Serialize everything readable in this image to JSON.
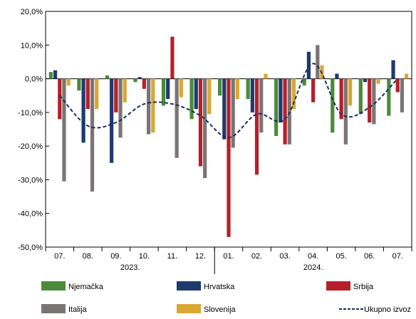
{
  "chart_data": {
    "type": "bar",
    "title": "",
    "xlabel": "",
    "ylabel": "",
    "ylim": [
      -50,
      20
    ],
    "yticks": [
      20,
      10,
      0,
      -10,
      -20,
      -30,
      -40,
      -50
    ],
    "ytick_labels": [
      "20,0%",
      "10,0%",
      "0,0%",
      "-10,0%",
      "-20,0%",
      "-30,0%",
      "-40,0%",
      "-50,0%"
    ],
    "grid": false,
    "legend_position": "bottom",
    "categories": [
      "07.",
      "08.",
      "09.",
      "10.",
      "11.",
      "12.",
      "01.",
      "02.",
      "03.",
      "04.",
      "05.",
      "06.",
      "07."
    ],
    "year_groups": [
      {
        "label": "2023.",
        "start_index": 0,
        "end_index": 5
      },
      {
        "label": "2024.",
        "start_index": 6,
        "end_index": 12
      }
    ],
    "series": [
      {
        "name": "Njemačka",
        "kind": "bar",
        "color": "#4a8a3a",
        "values": [
          2,
          -3.5,
          1,
          -1,
          -8,
          -12,
          -5,
          -6,
          -17,
          -2,
          -16,
          -10.5,
          -11
        ]
      },
      {
        "name": "Hrvatska",
        "kind": "bar",
        "color": "#1f3a6e",
        "values": [
          2.5,
          -19,
          -25,
          0.5,
          -6,
          -9,
          -18,
          -10,
          -13,
          8,
          1.5,
          -1,
          5.5
        ]
      },
      {
        "name": "Srbija",
        "kind": "bar",
        "color": "#b5202b",
        "values": [
          -12,
          -9,
          -10,
          -3,
          12.5,
          -26,
          -47,
          -28.5,
          -19.5,
          -7,
          -12,
          -13,
          -4
        ]
      },
      {
        "name": "Italija",
        "kind": "bar",
        "color": "#7a7574",
        "values": [
          -30.5,
          -33.5,
          -17.5,
          -16.5,
          -23.5,
          -29.5,
          -20.5,
          -16,
          -19.5,
          10,
          -19.5,
          -13.5,
          -10
        ]
      },
      {
        "name": "Slovenija",
        "kind": "bar",
        "color": "#d9a733",
        "values": [
          -2,
          -9,
          -7,
          -16,
          -5.5,
          -10.5,
          -6,
          1.5,
          -9,
          4,
          -8,
          -1.5,
          1.5
        ]
      },
      {
        "name": "Ukupno izvoz",
        "kind": "line",
        "style": "dashed",
        "color": "#1a2e5c",
        "values": [
          -5,
          -14,
          -13,
          -7.5,
          -7.5,
          -11,
          -17.5,
          -10.5,
          -12,
          4.5,
          -10.5,
          -8.5,
          0
        ]
      }
    ]
  }
}
